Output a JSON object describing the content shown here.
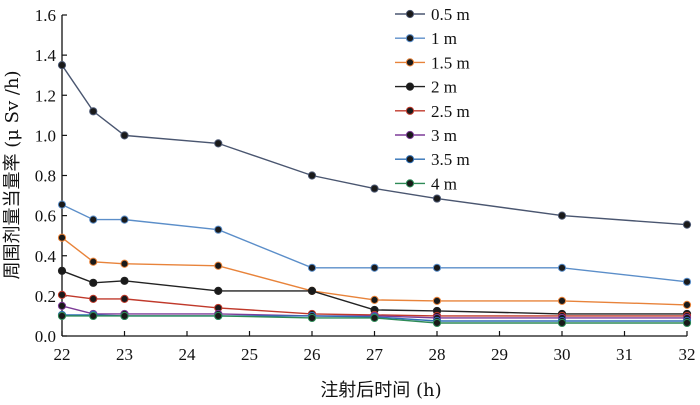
{
  "chart_data": {
    "type": "line",
    "title": "",
    "xlabel": "注射后时间 (h)",
    "ylabel": "周围剂量当量率 (μ Sv /h)",
    "xlim": [
      22,
      32
    ],
    "ylim": [
      0,
      1.6
    ],
    "x_ticks": [
      22,
      23,
      24,
      25,
      26,
      27,
      28,
      29,
      30,
      31,
      32
    ],
    "x_tick_labels": [
      "22",
      "23",
      "24",
      "25",
      "26",
      "27",
      "28",
      "29",
      "30",
      "31",
      "32"
    ],
    "y_ticks": [
      0,
      0.2,
      0.4,
      0.6,
      0.8,
      1.0,
      1.2,
      1.4,
      1.6
    ],
    "y_tick_labels": [
      "0.0",
      "0.2",
      "0.4",
      "0.6",
      "0.8",
      "1.0",
      "1.2",
      "1.4",
      "1.6"
    ],
    "legend_position": "top-right",
    "grid": false,
    "x": [
      22,
      22.5,
      23,
      24.5,
      26,
      27,
      28,
      30,
      32
    ],
    "series": [
      {
        "name": "0.5 m",
        "color": "#4a5670",
        "values": [
          1.35,
          1.12,
          1.0,
          0.96,
          0.8,
          0.735,
          0.685,
          0.6,
          0.555
        ]
      },
      {
        "name": "1 m",
        "color": "#5b8ec9",
        "values": [
          0.655,
          0.58,
          0.58,
          0.53,
          0.34,
          0.34,
          0.34,
          0.34,
          0.27
        ]
      },
      {
        "name": "1.5 m",
        "color": "#e8833a",
        "values": [
          0.49,
          0.37,
          0.36,
          0.35,
          0.225,
          0.18,
          0.175,
          0.175,
          0.155
        ]
      },
      {
        "name": "2 m",
        "color": "#222222",
        "values": [
          0.325,
          0.265,
          0.275,
          0.225,
          0.225,
          0.13,
          0.125,
          0.11,
          0.11
        ]
      },
      {
        "name": "2.5 m",
        "color": "#c0392b",
        "values": [
          0.205,
          0.185,
          0.185,
          0.14,
          0.11,
          0.105,
          0.1,
          0.1,
          0.1
        ]
      },
      {
        "name": "3 m",
        "color": "#7d3c98",
        "values": [
          0.15,
          0.11,
          0.11,
          0.11,
          0.1,
          0.1,
          0.09,
          0.09,
          0.09
        ]
      },
      {
        "name": "3.5 m",
        "color": "#2e6fb5",
        "values": [
          0.105,
          0.105,
          0.1,
          0.1,
          0.1,
          0.095,
          0.075,
          0.075,
          0.075
        ]
      },
      {
        "name": "4 m",
        "color": "#2e8b57",
        "values": [
          0.1,
          0.1,
          0.1,
          0.1,
          0.09,
          0.09,
          0.065,
          0.065,
          0.065
        ]
      }
    ]
  }
}
